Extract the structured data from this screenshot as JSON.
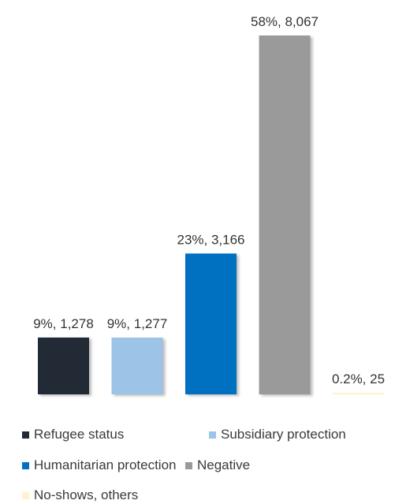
{
  "chart_data": {
    "type": "bar",
    "categories": [
      "Refugee status",
      "Subsidiary protection",
      "Humanitarian protection",
      "Negative",
      "No-shows, others"
    ],
    "values": [
      1278,
      1277,
      3166,
      8067,
      25
    ],
    "percent_labels": [
      "9%",
      "9%",
      "23%",
      "58%",
      "0.2%"
    ],
    "data_labels": [
      "9%, 1,278",
      "9%, 1,277",
      "23%, 3,166",
      "58%, 8,067",
      "0.2%, 25"
    ],
    "colors": [
      "#222a36",
      "#9dc3e6",
      "#0070c0",
      "#9a9a9a",
      "#fff2cc"
    ],
    "ylim": [
      0,
      8067
    ],
    "grid": false,
    "legend_position": "bottom",
    "title": "",
    "xlabel": "",
    "ylabel": ""
  },
  "legend": {
    "items": [
      {
        "label": "Refugee status",
        "color": "#222a36"
      },
      {
        "label": "Subsidiary protection",
        "color": "#9dc3e6"
      },
      {
        "label": "Humanitarian protection",
        "color": "#0070c0"
      },
      {
        "label": "Negative",
        "color": "#9a9a9a"
      },
      {
        "label": "No-shows, others",
        "color": "#fff2cc"
      }
    ]
  }
}
